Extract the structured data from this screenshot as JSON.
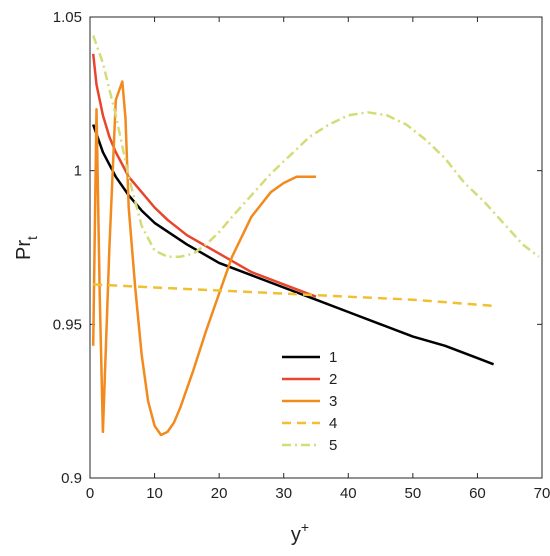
{
  "chart_data": {
    "type": "line",
    "xlabel": "y",
    "xlabel_sup": "+",
    "ylabel": "Pr",
    "ylabel_sub": "t",
    "xlim": [
      0,
      70
    ],
    "ylim": [
      0.9,
      1.05
    ],
    "xticks": [
      0,
      10,
      20,
      30,
      40,
      50,
      60,
      70
    ],
    "yticks": [
      0.9,
      0.95,
      1,
      1.05
    ],
    "xtick_labels": [
      "0",
      "10",
      "20",
      "30",
      "40",
      "50",
      "60",
      "70"
    ],
    "ytick_labels": [
      "0.9",
      "0.95",
      "1",
      "1.05"
    ],
    "grid": false,
    "legend_position": "lower-middle",
    "series": [
      {
        "name": "1",
        "color": "#000000",
        "style": "solid",
        "x": [
          0.5,
          2,
          4,
          6,
          8,
          10,
          15,
          20,
          25,
          30,
          35,
          40,
          45,
          50,
          55,
          60,
          62.5
        ],
        "y": [
          1.015,
          1.006,
          0.998,
          0.992,
          0.987,
          0.983,
          0.976,
          0.97,
          0.966,
          0.962,
          0.958,
          0.954,
          0.95,
          0.946,
          0.943,
          0.939,
          0.937
        ]
      },
      {
        "name": "2",
        "color": "#e8452c",
        "style": "solid",
        "x": [
          0.5,
          1,
          2,
          3,
          4,
          5,
          6,
          8,
          10,
          12,
          15,
          20,
          25,
          30,
          35
        ],
        "y": [
          1.038,
          1.028,
          1.018,
          1.011,
          1.006,
          1.002,
          0.998,
          0.993,
          0.988,
          0.984,
          0.979,
          0.973,
          0.967,
          0.963,
          0.959
        ]
      },
      {
        "name": "3",
        "color": "#f28a1e",
        "style": "solid",
        "x": [
          0.5,
          1,
          1.5,
          2,
          3,
          4,
          5,
          5.5,
          6,
          7,
          8,
          9,
          10,
          11,
          12,
          13,
          14,
          16,
          18,
          20,
          22,
          25,
          28,
          30,
          32,
          35
        ],
        "y": [
          0.943,
          1.02,
          0.96,
          0.915,
          0.975,
          1.023,
          1.029,
          1.017,
          0.988,
          0.962,
          0.94,
          0.925,
          0.917,
          0.914,
          0.915,
          0.918,
          0.923,
          0.935,
          0.948,
          0.96,
          0.972,
          0.985,
          0.993,
          0.996,
          0.998,
          0.998
        ]
      },
      {
        "name": "4",
        "color": "#f0c030",
        "style": "dashed",
        "x": [
          0.5,
          10,
          20,
          30,
          40,
          50,
          62.5
        ],
        "y": [
          0.963,
          0.962,
          0.961,
          0.96,
          0.959,
          0.958,
          0.956
        ]
      },
      {
        "name": "5",
        "color": "#d4dc78",
        "style": "dashdot",
        "x": [
          0.5,
          2,
          4,
          6,
          8,
          10,
          12,
          14,
          16,
          18,
          20,
          22,
          25,
          28,
          31,
          34,
          37,
          40,
          43,
          46,
          49,
          52,
          55,
          58,
          61,
          64,
          67,
          69.5
        ],
        "y": [
          1.044,
          1.035,
          1.018,
          0.998,
          0.982,
          0.974,
          0.972,
          0.972,
          0.973,
          0.976,
          0.98,
          0.985,
          0.992,
          0.999,
          1.005,
          1.011,
          1.015,
          1.018,
          1.019,
          1.018,
          1.015,
          1.01,
          1.004,
          0.996,
          0.99,
          0.983,
          0.976,
          0.972
        ]
      }
    ]
  }
}
